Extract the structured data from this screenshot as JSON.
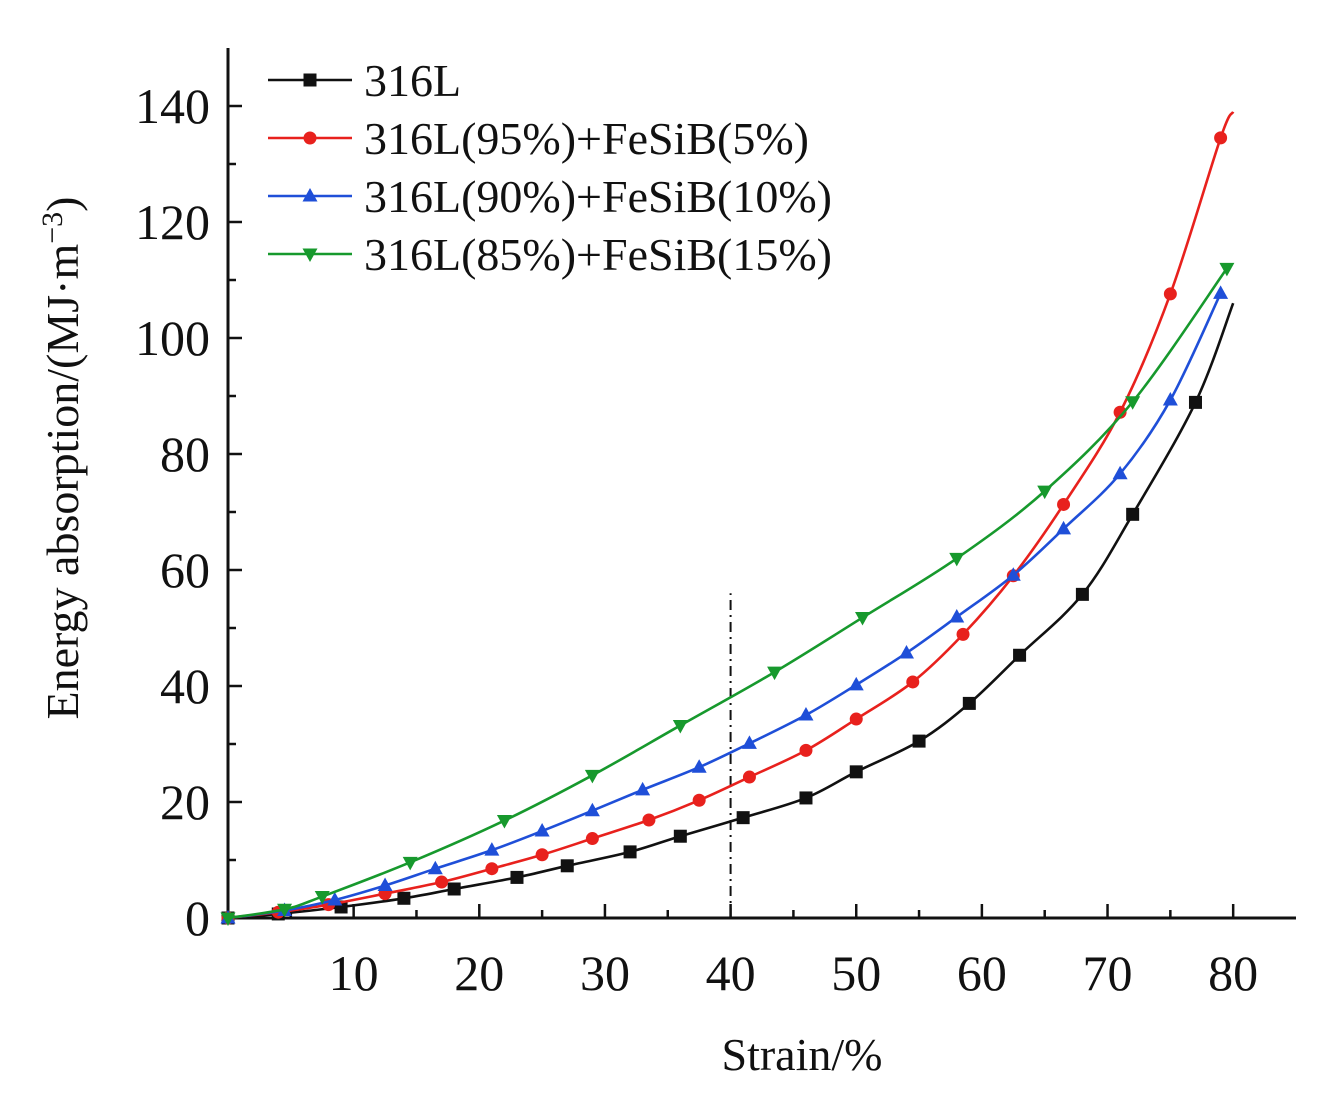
{
  "chart_data": {
    "type": "line",
    "title": "",
    "xlabel": "Strain/%",
    "ylabel_main": "Energy absorption/(MJ·m",
    "ylabel_sup": "−3",
    "ylabel_close": ")",
    "xlim": [
      0,
      85
    ],
    "ylim": [
      0,
      150
    ],
    "xticks": [
      10,
      20,
      30,
      40,
      50,
      60,
      70,
      80
    ],
    "yticks": [
      0,
      20,
      40,
      60,
      80,
      100,
      120,
      140
    ],
    "grid": false,
    "legend_position": "top-left",
    "reference_line": {
      "x": 40,
      "y_top": 56,
      "style": "dash-dot"
    },
    "series": [
      {
        "name": "316L",
        "color": "#111111",
        "marker": "square",
        "x": [
          0,
          4,
          9,
          14,
          18,
          23,
          27,
          32,
          36,
          41,
          46,
          50,
          55,
          59,
          63,
          68,
          72,
          77,
          80
        ],
        "y": [
          0,
          0.7,
          1.9,
          3.4,
          5.0,
          7.0,
          9.0,
          11.4,
          14.1,
          17.3,
          20.7,
          25.2,
          30.5,
          37.0,
          45.3,
          55.8,
          69.6,
          88.9,
          106.0
        ]
      },
      {
        "name": "316L(95%)+FeSiB(5%)",
        "color": "#e8211d",
        "marker": "circle",
        "x": [
          0,
          4,
          8,
          12.5,
          17,
          21,
          25,
          29,
          33.5,
          37.5,
          41.5,
          46,
          50,
          54.5,
          58.5,
          62.5,
          66.5,
          71,
          75,
          79,
          80
        ],
        "y": [
          0,
          1.0,
          2.3,
          4.2,
          6.2,
          8.5,
          10.9,
          13.7,
          16.9,
          20.3,
          24.3,
          28.9,
          34.3,
          40.7,
          48.9,
          59.0,
          71.3,
          87.2,
          107.6,
          134.5,
          139.0
        ]
      },
      {
        "name": "316L(90%)+FeSiB(10%)",
        "color": "#1f4fd8",
        "marker": "triangle-up",
        "x": [
          0,
          4.5,
          8.5,
          12.5,
          16.5,
          21,
          25,
          29,
          33,
          37.5,
          41.5,
          46,
          50,
          54,
          58,
          62.5,
          66.5,
          71,
          75,
          79
        ],
        "y": [
          0,
          1.3,
          3.1,
          5.6,
          8.5,
          11.7,
          15.0,
          18.5,
          22.1,
          26.0,
          30.1,
          35.0,
          40.2,
          45.7,
          51.9,
          59.1,
          67.1,
          76.6,
          89.3,
          107.7
        ]
      },
      {
        "name": "316L(85%)+FeSiB(15%)",
        "color": "#17992d",
        "marker": "triangle-down",
        "x": [
          0,
          4.5,
          7.5,
          14.5,
          22,
          29,
          36,
          43.5,
          50.5,
          58,
          65,
          72,
          79.5
        ],
        "y": [
          0,
          1.5,
          3.7,
          9.6,
          16.8,
          24.6,
          33.2,
          42.4,
          51.8,
          62.0,
          73.6,
          89.0,
          112.0
        ]
      }
    ]
  }
}
